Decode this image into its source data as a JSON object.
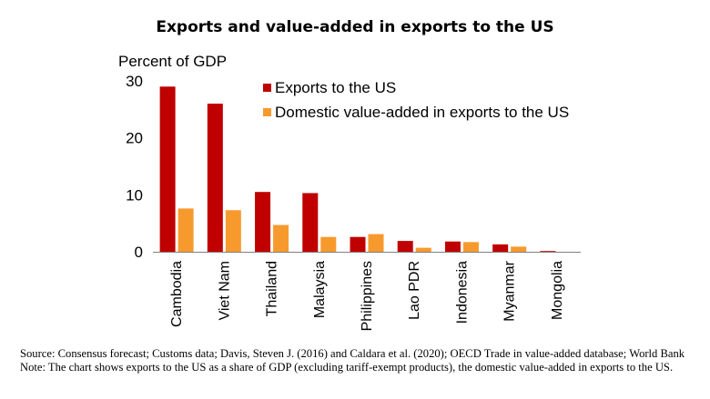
{
  "chart_data": {
    "type": "bar",
    "title": "Exports and value-added in exports to the US",
    "ylabel": "Percent of GDP",
    "xlabel": "",
    "ylim": [
      0,
      30
    ],
    "yticks": [
      "0",
      "10",
      "20",
      "30"
    ],
    "grid": false,
    "legend_position": "top-right",
    "categories": [
      "Cambodia",
      "Viet Nam",
      "Thailand",
      "Malaysia",
      "Philippines",
      "Lao PDR",
      "Indonesia",
      "Myanmar",
      "Mongolia"
    ],
    "series": [
      {
        "name": "Exports to the US",
        "color": "#c00000",
        "values": [
          29.0,
          26.0,
          10.5,
          10.3,
          2.6,
          1.9,
          1.8,
          1.3,
          0.1
        ]
      },
      {
        "name": "Domestic value-added in exports to the US",
        "color": "#f79a2e",
        "values": [
          7.6,
          7.3,
          4.7,
          2.6,
          3.1,
          0.7,
          1.7,
          0.9,
          0.0
        ]
      }
    ]
  },
  "footer": {
    "source": "Source: Consensus forecast; Customs data; Davis, Steven J. (2016) and Caldara et al. (2020); OECD Trade in value-added database; World Bank",
    "note": "Note: The chart shows exports to the US as a share of  GDP (excluding tariff-exempt products), the domestic value-added in exports to the US."
  }
}
